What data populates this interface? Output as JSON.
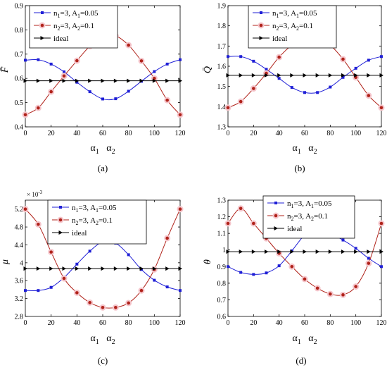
{
  "figure_title": "",
  "colors": {
    "blue": "#1f1fd6",
    "red": "#b0221a",
    "black": "#000000",
    "halo": "#f5c6cc"
  },
  "chart_data": [
    {
      "id": "a",
      "type": "line",
      "panel_label": "(a)",
      "ylabel": "F̄",
      "xlabel": "α1   α2",
      "xlim": [
        0,
        120
      ],
      "ylim": [
        0.4,
        0.9
      ],
      "xticks": [
        0,
        20,
        40,
        60,
        80,
        100,
        120
      ],
      "yticks": [
        0.4,
        0.5,
        0.6,
        0.7,
        0.8,
        0.9
      ],
      "ytick_labels": [
        "0.4",
        "0.5",
        "0.6",
        "0.7",
        "0.8",
        "0.9"
      ],
      "exponent_label": "",
      "legend_location": "top-left",
      "series": [
        {
          "name": "n1=3, A1=0.05",
          "color": "blue",
          "marker": "square",
          "x": [
            0,
            10,
            20,
            30,
            40,
            50,
            60,
            70,
            80,
            90,
            100,
            110,
            120
          ],
          "y": [
            0.675,
            0.677,
            0.659,
            0.627,
            0.584,
            0.545,
            0.515,
            0.516,
            0.547,
            0.588,
            0.628,
            0.659,
            0.677
          ]
        },
        {
          "name": "n2=3, A2=0.1",
          "color": "red",
          "marker": "circle",
          "x": [
            0,
            10,
            20,
            30,
            40,
            50,
            60,
            70,
            80,
            90,
            100,
            110,
            120
          ],
          "y": [
            0.45,
            0.478,
            0.545,
            0.61,
            0.673,
            0.733,
            0.77,
            0.775,
            0.737,
            0.672,
            0.6,
            0.51,
            0.45
          ]
        },
        {
          "name": "ideal",
          "color": "black",
          "marker": "triangle-right",
          "x": [
            0,
            10,
            20,
            30,
            40,
            50,
            60,
            70,
            80,
            90,
            100,
            110,
            120
          ],
          "y": [
            0.59,
            0.59,
            0.59,
            0.59,
            0.59,
            0.59,
            0.59,
            0.59,
            0.59,
            0.59,
            0.59,
            0.59,
            0.59
          ]
        }
      ]
    },
    {
      "id": "b",
      "type": "line",
      "panel_label": "(b)",
      "ylabel": "Q̄",
      "xlabel": "α1   α2",
      "xlim": [
        0,
        120
      ],
      "ylim": [
        1.3,
        1.9
      ],
      "xticks": [
        0,
        20,
        40,
        60,
        80,
        100,
        120
      ],
      "yticks": [
        1.3,
        1.4,
        1.5,
        1.6,
        1.7,
        1.8,
        1.9
      ],
      "ytick_labels": [
        "1.3",
        "1.4",
        "1.5",
        "1.6",
        "1.7",
        "1.8",
        "1.9"
      ],
      "exponent_label": "",
      "legend_location": "top-right",
      "series": [
        {
          "name": "n1=3, A1=0.05",
          "color": "blue",
          "marker": "square",
          "x": [
            0,
            10,
            20,
            30,
            40,
            50,
            60,
            70,
            80,
            90,
            100,
            110,
            120
          ],
          "y": [
            1.648,
            1.648,
            1.625,
            1.585,
            1.54,
            1.495,
            1.47,
            1.47,
            1.497,
            1.545,
            1.59,
            1.63,
            1.648
          ]
        },
        {
          "name": "n2=3, A2=0.1",
          "color": "red",
          "marker": "circle",
          "x": [
            0,
            10,
            20,
            30,
            40,
            50,
            60,
            70,
            80,
            90,
            100,
            110,
            120
          ],
          "y": [
            1.395,
            1.425,
            1.49,
            1.565,
            1.645,
            1.705,
            1.745,
            1.748,
            1.705,
            1.635,
            1.545,
            1.455,
            1.395
          ]
        },
        {
          "name": "ideal",
          "color": "black",
          "marker": "triangle-right",
          "x": [
            0,
            10,
            20,
            30,
            40,
            50,
            60,
            70,
            80,
            90,
            100,
            110,
            120
          ],
          "y": [
            1.555,
            1.555,
            1.555,
            1.555,
            1.555,
            1.555,
            1.555,
            1.555,
            1.555,
            1.555,
            1.555,
            1.555,
            1.555
          ]
        }
      ]
    },
    {
      "id": "c",
      "type": "line",
      "panel_label": "(c)",
      "ylabel": "μ",
      "xlabel": "α1   α2",
      "xlim": [
        0,
        120
      ],
      "ylim": [
        0.0028,
        0.0054
      ],
      "xticks": [
        0,
        20,
        40,
        60,
        80,
        100,
        120
      ],
      "yticks": [
        0.0028,
        0.0032,
        0.0036,
        0.004,
        0.0044,
        0.0048,
        0.0052
      ],
      "ytick_labels": [
        "2.8",
        "3.2",
        "3.6",
        "4",
        "4.4",
        "4.8",
        "5.2"
      ],
      "exponent_label": "× 10-3",
      "legend_location": "top-right",
      "series": [
        {
          "name": "n1=3, A1=0.05",
          "color": "blue",
          "marker": "square",
          "x": [
            0,
            10,
            20,
            30,
            40,
            50,
            60,
            70,
            80,
            90,
            100,
            110,
            120
          ],
          "y": [
            0.00338,
            0.00338,
            0.00345,
            0.00367,
            0.00397,
            0.00426,
            0.00447,
            0.00444,
            0.00418,
            0.00385,
            0.00361,
            0.00346,
            0.00338
          ]
        },
        {
          "name": "n2=3, A2=0.1",
          "color": "red",
          "marker": "circle",
          "x": [
            0,
            10,
            20,
            30,
            40,
            50,
            60,
            70,
            80,
            90,
            100,
            110,
            120
          ],
          "y": [
            0.0052,
            0.00486,
            0.00424,
            0.00365,
            0.00333,
            0.00311,
            0.003,
            0.003,
            0.0031,
            0.00338,
            0.00385,
            0.00455,
            0.0052
          ]
        },
        {
          "name": "ideal",
          "color": "black",
          "marker": "triangle-right",
          "x": [
            0,
            10,
            20,
            30,
            40,
            50,
            60,
            70,
            80,
            90,
            100,
            110,
            120
          ],
          "y": [
            0.00387,
            0.00387,
            0.00387,
            0.00387,
            0.00387,
            0.00387,
            0.00387,
            0.00387,
            0.00387,
            0.00387,
            0.00387,
            0.00387,
            0.00387
          ]
        }
      ]
    },
    {
      "id": "d",
      "type": "line",
      "panel_label": "(d)",
      "ylabel": "θ",
      "xlabel": "α1   α2",
      "xlim": [
        0,
        120
      ],
      "ylim": [
        0.6,
        1.3
      ],
      "xticks": [
        0,
        20,
        40,
        60,
        80,
        100,
        120
      ],
      "yticks": [
        0.6,
        0.7,
        0.8,
        0.9,
        1.0,
        1.1,
        1.2,
        1.3
      ],
      "ytick_labels": [
        "0.6",
        "0.7",
        "0.8",
        "0.9",
        "1",
        "1.1",
        "1.2",
        "1.3"
      ],
      "exponent_label": "",
      "legend_location": "top-right",
      "series": [
        {
          "name": "n1=3, A1=0.05",
          "color": "blue",
          "marker": "square",
          "x": [
            0,
            10,
            20,
            30,
            40,
            50,
            60,
            70,
            80,
            90,
            100,
            110,
            120
          ],
          "y": [
            0.9,
            0.865,
            0.853,
            0.862,
            0.905,
            0.995,
            1.09,
            1.13,
            1.1,
            1.06,
            1.01,
            0.95,
            0.9
          ]
        },
        {
          "name": "n2=3, A2=0.1",
          "color": "red",
          "marker": "circle",
          "x": [
            0,
            10,
            20,
            30,
            40,
            50,
            60,
            70,
            80,
            90,
            100,
            110,
            120
          ],
          "y": [
            1.16,
            1.25,
            1.16,
            1.07,
            0.98,
            0.9,
            0.825,
            0.77,
            0.735,
            0.73,
            0.78,
            0.92,
            1.16
          ]
        },
        {
          "name": "ideal",
          "color": "black",
          "marker": "triangle-right",
          "x": [
            0,
            10,
            20,
            30,
            40,
            50,
            60,
            70,
            80,
            90,
            100,
            110,
            120
          ],
          "y": [
            0.99,
            0.99,
            0.99,
            0.99,
            0.99,
            0.99,
            0.99,
            0.99,
            0.99,
            0.99,
            0.99,
            0.99,
            0.99
          ]
        }
      ]
    }
  ]
}
